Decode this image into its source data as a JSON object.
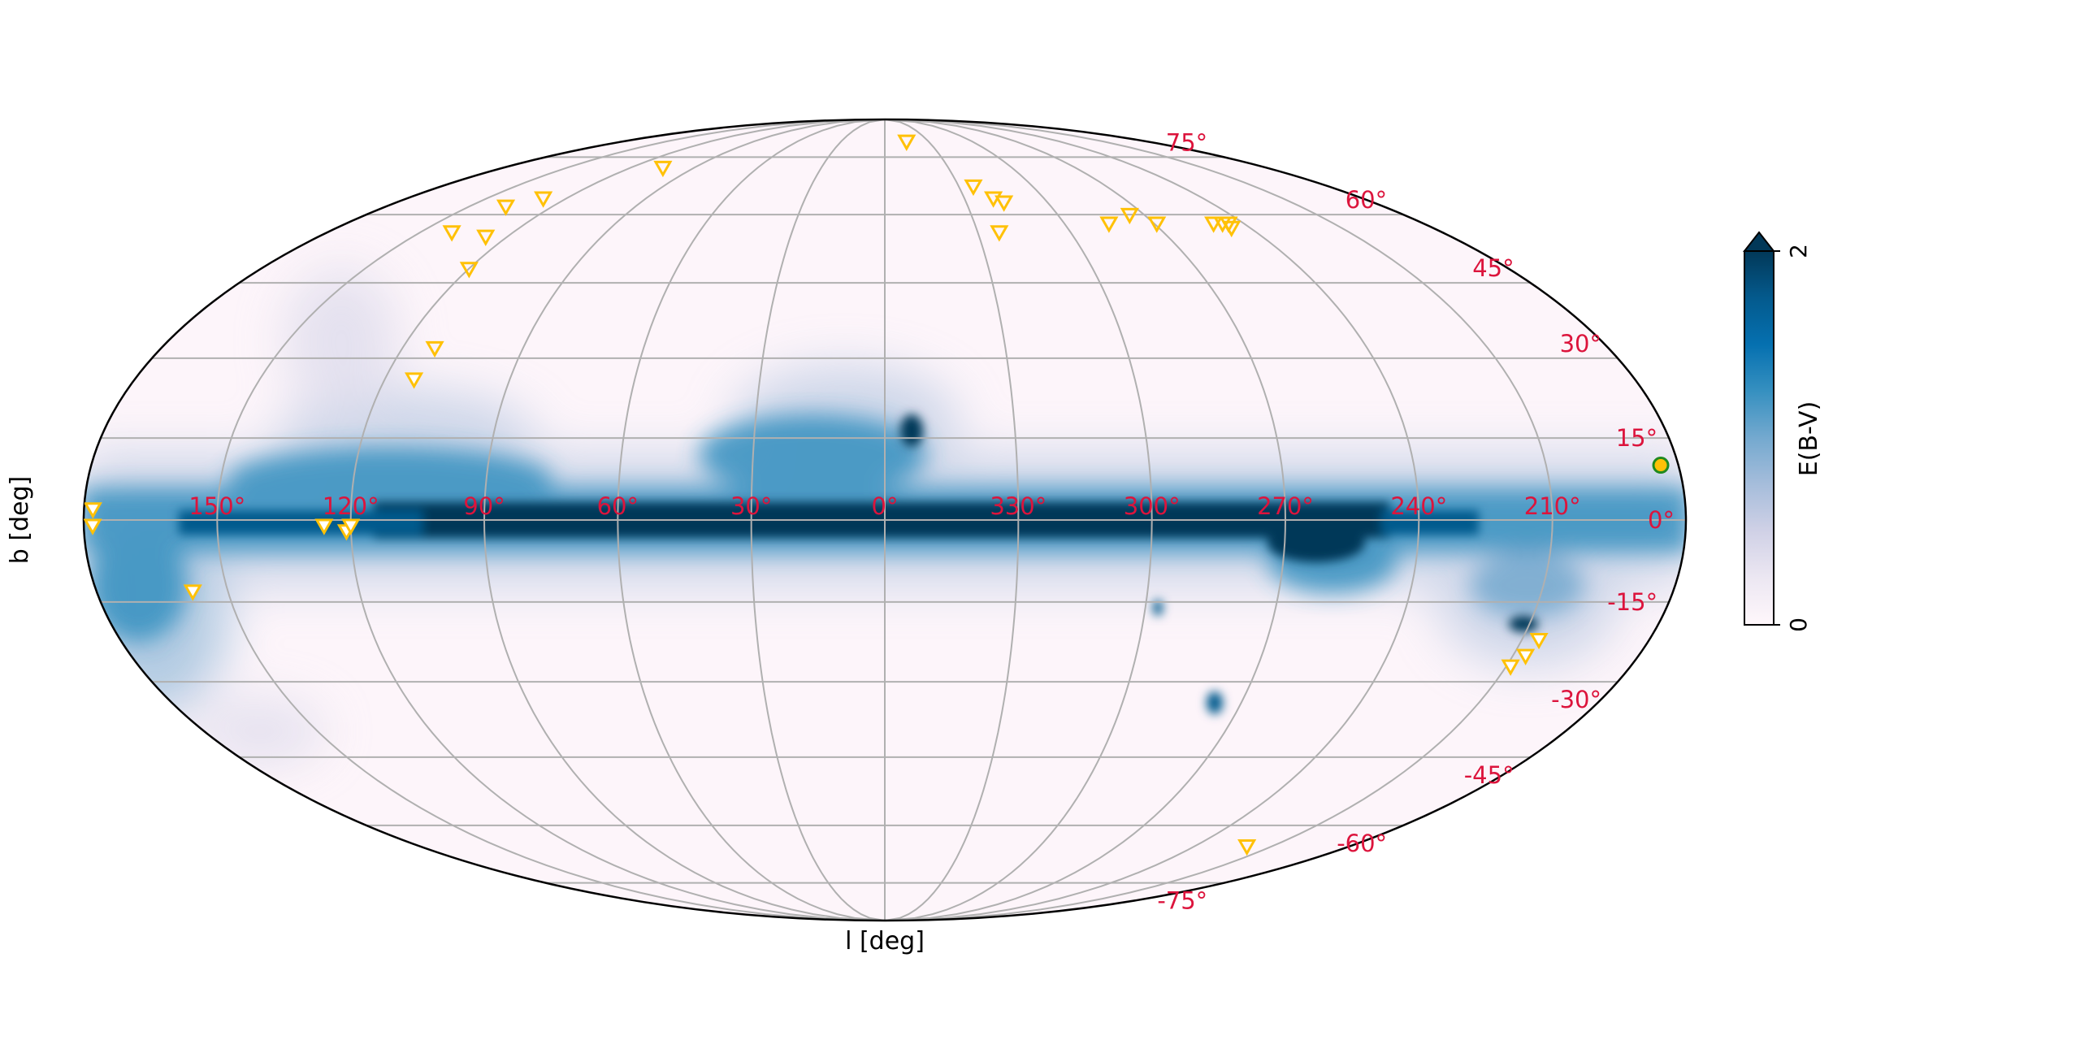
{
  "chart_data": {
    "type": "heatmap",
    "projection": "mollweide",
    "title": "",
    "xlabel": "l [deg]",
    "ylabel": "b [deg]",
    "lon_tick_labels": [
      "150°",
      "120°",
      "90°",
      "60°",
      "30°",
      "0°",
      "330°",
      "300°",
      "270°",
      "240°",
      "210°"
    ],
    "lon_ticks": [
      150,
      120,
      90,
      60,
      30,
      0,
      -30,
      -60,
      -90,
      -120,
      -150
    ],
    "lat_tick_labels": [
      "75°",
      "60°",
      "45°",
      "30°",
      "15°",
      "0°",
      "-15°",
      "-30°",
      "-45°",
      "-60°",
      "-75°"
    ],
    "lat_ticks": [
      75,
      60,
      45,
      30,
      15,
      0,
      -15,
      -30,
      -45,
      -60,
      -75
    ],
    "grid": true,
    "colorbar": {
      "label": "E(B-V)",
      "vmin": 0,
      "vmax": 2,
      "tick_labels": [
        "0",
        "2"
      ],
      "extend": "max",
      "colormap": "PuBu",
      "colors": [
        "#fff7fb",
        "#ece7f2",
        "#d0d1e6",
        "#a6bddb",
        "#74a9cf",
        "#3690c0",
        "#0570b0",
        "#045a8d",
        "#023858"
      ]
    },
    "tick_label_color": "#dc143c",
    "gridline_color": "#b0b0b0",
    "marker_color": "#ffc107",
    "series": [
      {
        "name": "triangle-markers",
        "marker": "inverted-triangle",
        "points_lb_approx": [
          [
            178,
            2
          ],
          [
            126,
            -1
          ],
          [
            121,
            -2
          ],
          [
            120,
            -1
          ],
          [
            158,
            -13
          ],
          [
            112,
            32
          ],
          [
            113,
            26
          ],
          [
            120,
            48
          ],
          [
            127,
            55
          ],
          [
            140,
            56
          ],
          [
            129,
            64
          ],
          [
            137,
            62
          ],
          [
            105,
            72
          ],
          [
            345,
            80
          ],
          [
            324,
            67
          ],
          [
            319,
            64
          ],
          [
            316,
            63
          ],
          [
            323,
            56
          ],
          [
            285,
            58
          ],
          [
            275,
            60
          ],
          [
            269,
            58
          ],
          [
            250,
            58
          ],
          [
            247,
            58
          ],
          [
            246,
            57
          ],
          [
            245,
            58
          ],
          [
            178,
            -1
          ],
          [
            206,
            -22
          ],
          [
            207,
            -25
          ],
          [
            209,
            -27
          ],
          [
            220,
            -65
          ]
        ]
      },
      {
        "name": "circle-marker",
        "marker": "circle",
        "fill": "#ffc107",
        "edge": "#1f8a1f",
        "points_lb_approx": [
          [
            184,
            10
          ]
        ]
      }
    ]
  },
  "labels": {
    "x_axis": "l [deg]",
    "y_axis": "b [deg]",
    "colorbar": "E(B-V)"
  }
}
